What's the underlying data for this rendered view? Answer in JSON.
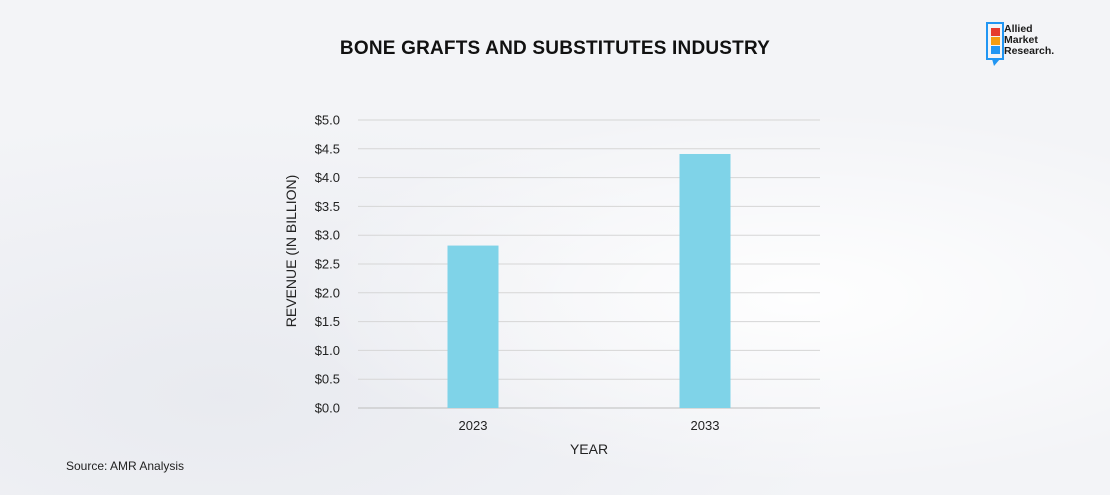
{
  "chart_data": {
    "type": "bar",
    "title": "BONE GRAFTS AND SUBSTITUTES INDUSTRY",
    "xlabel": "YEAR",
    "ylabel": "REVENUE (IN BILLION)",
    "categories": [
      "2023",
      "2033"
    ],
    "values": [
      2.82,
      4.41
    ],
    "ylim": [
      0,
      5.0
    ],
    "yticks": [
      "$0.0",
      "$0.5",
      "$1.0",
      "$1.5",
      "$2.0",
      "$2.5",
      "$3.0",
      "$3.5",
      "$4.0",
      "$4.5",
      "$5.0"
    ],
    "bar_color": "#7fd3e8",
    "grid": true
  },
  "source": "Source: AMR Analysis",
  "logo": {
    "lines": [
      "Allied",
      "Market",
      "Research."
    ],
    "colors": [
      "#e63b2e",
      "#f39c12",
      "#2196f3"
    ]
  }
}
